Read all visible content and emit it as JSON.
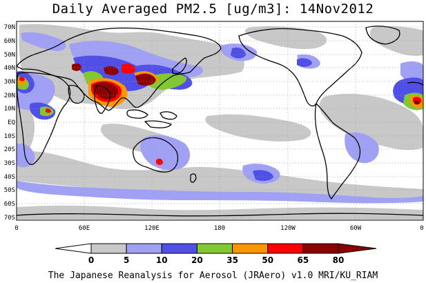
{
  "title": "Daily Averaged PM2.5 [ug/m3]: 14Nov2012",
  "credit": "The Japanese Reanalysis for Aerosol (JRAero) v1.0 MRI/KU_RIAM",
  "lat_labels": [
    "70N",
    "60N",
    "50N",
    "40N",
    "30N",
    "20N",
    "10N",
    "EQ",
    "10S",
    "20S",
    "30S",
    "40S",
    "50S",
    "60S",
    "70S"
  ],
  "lon_labels": [
    "0",
    "60E",
    "120E",
    "180",
    "120W",
    "60W",
    "0"
  ],
  "colorbar": {
    "ticks": [
      "0",
      "5",
      "10",
      "20",
      "35",
      "50",
      "65",
      "80"
    ],
    "colors": [
      "#ffffff",
      "#c8c8c8",
      "#a0a0f5",
      "#5050e6",
      "#82c832",
      "#ff9600",
      "#ff0000",
      "#8c0000"
    ]
  },
  "field_colors": {
    "ocean": "#ffffff",
    "low": "#c8c8c8",
    "medium": "#a0a0f5",
    "high": "#5050e6",
    "elevated": "#82c832",
    "very_high": "#ff9600",
    "severe": "#ff0000",
    "extreme": "#8c0000"
  }
}
